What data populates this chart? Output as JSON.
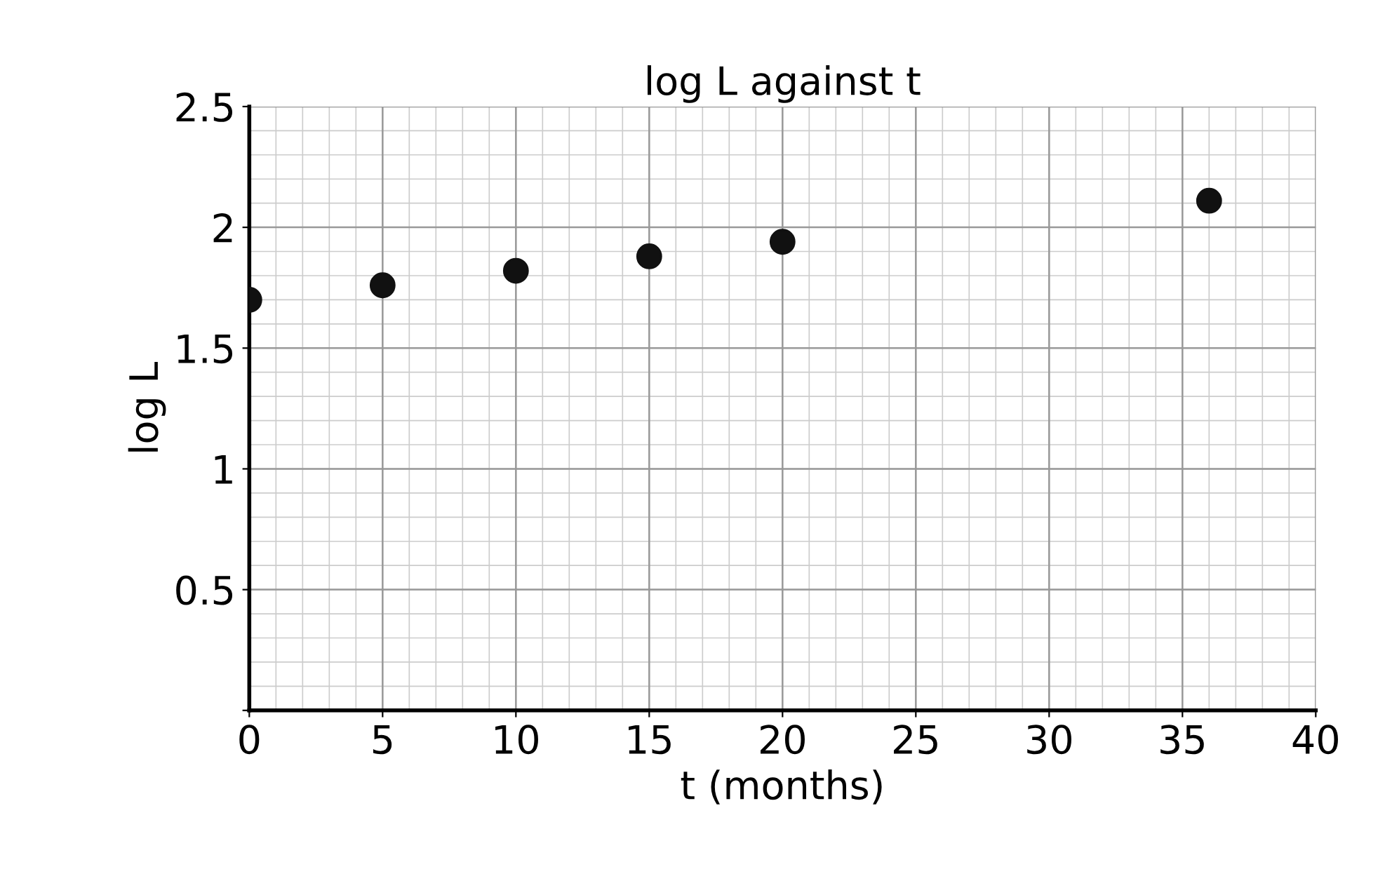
{
  "chart_data": {
    "type": "scatter",
    "title": "log L against t",
    "xlabel": "t (months)",
    "ylabel": "log L",
    "x": [
      0,
      5,
      10,
      15,
      20,
      36
    ],
    "series": [
      {
        "color": "#111111",
        "values": [
          1.7,
          1.76,
          1.82,
          1.88,
          1.94,
          2.11
        ]
      }
    ],
    "xlim": [
      0,
      40
    ],
    "ylim": [
      0,
      2.5
    ],
    "xticks": [
      0,
      5,
      10,
      15,
      20,
      25,
      30,
      35,
      40
    ],
    "yticks": [
      {
        "value": 0,
        "label": null
      },
      0.5,
      1,
      1.5,
      2,
      2.5
    ],
    "grid": true,
    "marker": "circle"
  }
}
